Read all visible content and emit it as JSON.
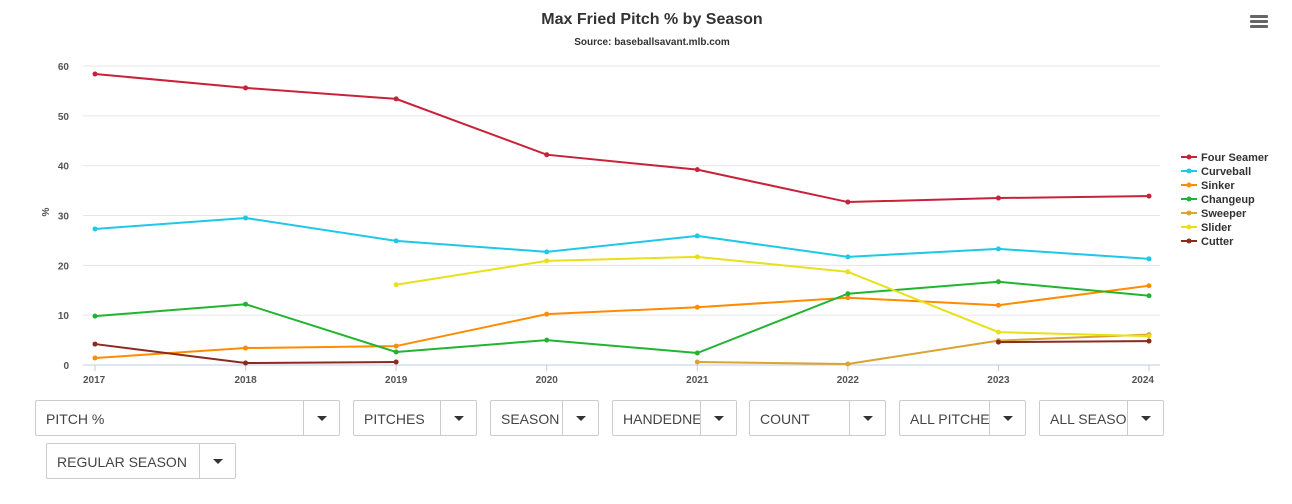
{
  "chart_data": {
    "type": "line",
    "title": "Max Fried Pitch % by Season",
    "subtitle": "Source: baseballsavant.mlb.com",
    "ylabel": "%",
    "xlabel": "",
    "categories": [
      "2017",
      "2018",
      "2019",
      "2020",
      "2021",
      "2022",
      "2023",
      "2024"
    ],
    "ylim": [
      0,
      60
    ],
    "yticks": [
      0,
      10,
      20,
      30,
      40,
      50,
      60
    ],
    "grid": true,
    "legend_placement": "right",
    "series": [
      {
        "name": "Four Seamer",
        "color": "#c8223a",
        "values": [
          58.4,
          55.6,
          53.4,
          42.2,
          39.2,
          32.7,
          33.5,
          33.9
        ]
      },
      {
        "name": "Curveball",
        "color": "#1ec8e6",
        "values": [
          27.3,
          29.5,
          24.9,
          22.7,
          25.9,
          21.7,
          23.3,
          21.3
        ]
      },
      {
        "name": "Sinker",
        "color": "#ff8c00",
        "values": [
          1.4,
          3.4,
          3.8,
          10.2,
          11.6,
          13.5,
          12.0,
          15.9
        ]
      },
      {
        "name": "Changeup",
        "color": "#22b430",
        "values": [
          9.8,
          12.2,
          2.6,
          5.0,
          2.4,
          14.3,
          16.7,
          13.9
        ]
      },
      {
        "name": "Sweeper",
        "color": "#d9a530",
        "values": [
          null,
          null,
          null,
          null,
          0.6,
          0.2,
          4.9,
          6.1
        ]
      },
      {
        "name": "Slider",
        "color": "#e8e01a",
        "values": [
          null,
          null,
          16.1,
          20.9,
          21.7,
          18.7,
          6.6,
          5.8
        ]
      },
      {
        "name": "Cutter",
        "color": "#8b2a1e",
        "values": [
          4.2,
          0.4,
          0.6,
          null,
          null,
          null,
          4.6,
          4.8
        ]
      }
    ]
  },
  "controls": [
    {
      "label": "PITCH %"
    },
    {
      "label": "PITCHES"
    },
    {
      "label": "SEASON"
    },
    {
      "label": "HANDEDNESS"
    },
    {
      "label": "COUNT"
    },
    {
      "label": "ALL PITCHES"
    },
    {
      "label": "ALL SEASONS"
    },
    {
      "label": "REGULAR SEASON"
    }
  ]
}
